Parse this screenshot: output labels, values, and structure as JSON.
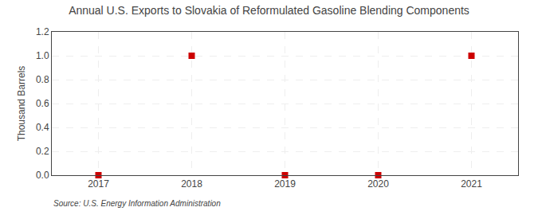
{
  "chart_data": {
    "type": "scatter",
    "title": "Annual U.S. Exports to Slovakia of Reformulated Gasoline Blending Components",
    "ylabel": "Thousand Barrels",
    "annotations": [
      "Source: U.S. Energy Information Administration"
    ],
    "x": [
      2017,
      2018,
      2019,
      2020,
      2021
    ],
    "values": [
      0.0,
      1.0,
      0.0,
      0.0,
      1.0
    ],
    "xlim": [
      2016.5,
      2021.5
    ],
    "xticks": [
      2017,
      2018,
      2019,
      2020,
      2021
    ],
    "ylim": [
      0.0,
      1.2
    ],
    "yticks": [
      {
        "value": 0.0,
        "label": "0.0"
      },
      0.2,
      0.4,
      0.6,
      0.8,
      {
        "value": 1.0,
        "label": "1.0"
      },
      1.2
    ],
    "color": "#cc0000",
    "marker": "square",
    "grid": true
  }
}
